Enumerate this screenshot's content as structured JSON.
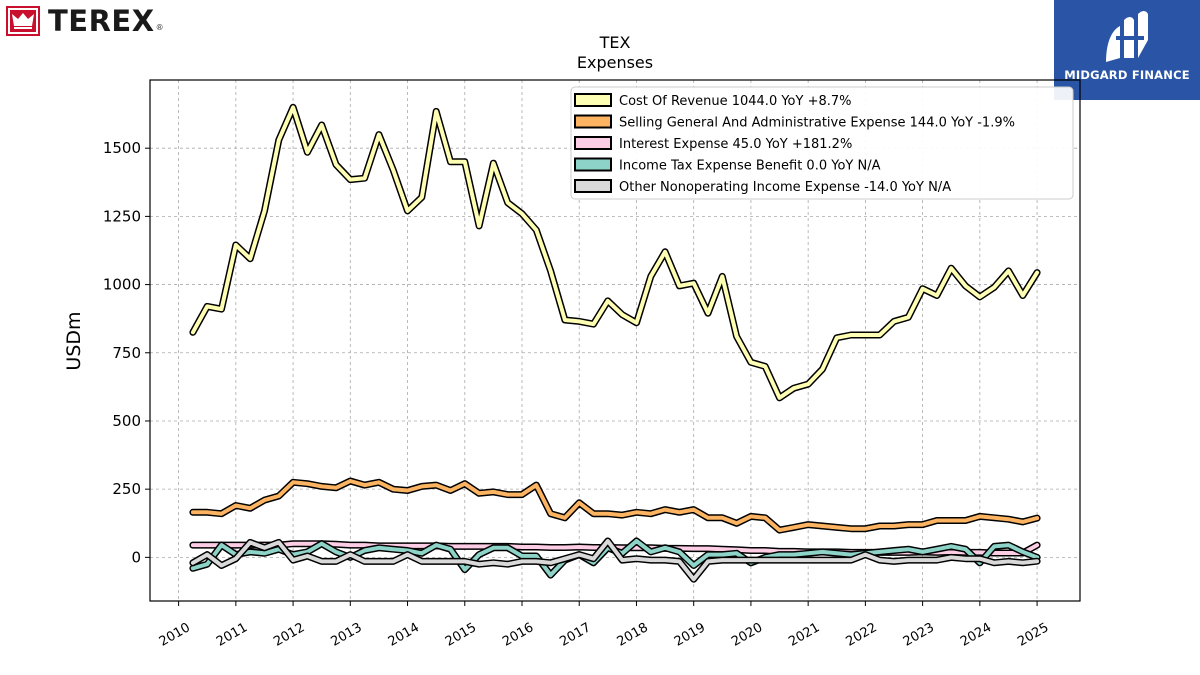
{
  "header": {
    "company_logo_text": "TEREX",
    "registered_mark": "®",
    "brand_name": "MIDGARD FINANCE"
  },
  "chart_data": {
    "type": "line",
    "title": "TEX",
    "subtitle": "Expenses",
    "xlabel": "",
    "ylabel": "USDm",
    "xlim": [
      2009.5,
      2025.75
    ],
    "ylim": [
      -160,
      1750
    ],
    "xticks": [
      "2010",
      "2011",
      "2012",
      "2013",
      "2014",
      "2015",
      "2016",
      "2017",
      "2018",
      "2019",
      "2020",
      "2021",
      "2022",
      "2023",
      "2024",
      "2025"
    ],
    "yticks": [
      "0",
      "250",
      "500",
      "750",
      "1000",
      "1250",
      "1500"
    ],
    "grid": true,
    "legend_position": "top-right",
    "x": [
      2010.25,
      2010.5,
      2010.75,
      2011.0,
      2011.25,
      2011.5,
      2011.75,
      2012.0,
      2012.25,
      2012.5,
      2012.75,
      2013.0,
      2013.25,
      2013.5,
      2013.75,
      2014.0,
      2014.25,
      2014.5,
      2014.75,
      2015.0,
      2015.25,
      2015.5,
      2015.75,
      2016.0,
      2016.25,
      2016.5,
      2016.75,
      2017.0,
      2017.25,
      2017.5,
      2017.75,
      2018.0,
      2018.25,
      2018.5,
      2018.75,
      2019.0,
      2019.25,
      2019.5,
      2019.75,
      2020.0,
      2020.25,
      2020.5,
      2020.75,
      2021.0,
      2021.25,
      2021.5,
      2021.75,
      2022.0,
      2022.25,
      2022.5,
      2022.75,
      2023.0,
      2023.25,
      2023.5,
      2023.75,
      2024.0,
      2024.25,
      2024.5,
      2024.75,
      2025.0
    ],
    "series": [
      {
        "name": "Cost Of Revenue",
        "legend": "Cost Of Revenue  1044.0 YoY +8.7%",
        "color": "#ffffb3",
        "values": [
          825,
          920,
          910,
          1145,
          1095,
          1270,
          1530,
          1650,
          1485,
          1585,
          1440,
          1385,
          1390,
          1550,
          1420,
          1270,
          1320,
          1635,
          1450,
          1450,
          1215,
          1445,
          1300,
          1260,
          1200,
          1050,
          870,
          865,
          855,
          940,
          890,
          860,
          1030,
          1120,
          995,
          1005,
          895,
          1030,
          810,
          715,
          700,
          585,
          620,
          635,
          690,
          805,
          815,
          815,
          815,
          865,
          880,
          985,
          960,
          1060,
          995,
          955,
          990,
          1050,
          960,
          1044
        ]
      },
      {
        "name": "Selling General And Administrative Expense",
        "legend": "Selling General And Administrative Expense  144.0 YoY -1.9%",
        "color": "#fdb462",
        "values": [
          165,
          165,
          160,
          190,
          180,
          210,
          225,
          275,
          270,
          260,
          255,
          280,
          265,
          275,
          250,
          245,
          260,
          265,
          245,
          270,
          235,
          240,
          230,
          230,
          265,
          160,
          145,
          200,
          160,
          160,
          155,
          165,
          160,
          175,
          165,
          175,
          145,
          145,
          125,
          150,
          145,
          100,
          110,
          120,
          115,
          110,
          105,
          105,
          115,
          115,
          120,
          120,
          135,
          135,
          135,
          150,
          145,
          140,
          130,
          144
        ]
      },
      {
        "name": "Interest Expense",
        "legend": "Interest Expense  45.0 YoY +181.2%",
        "color": "#fccde5",
        "values": [
          45,
          45,
          45,
          45,
          45,
          45,
          45,
          50,
          50,
          50,
          48,
          45,
          45,
          42,
          42,
          42,
          42,
          42,
          40,
          40,
          40,
          40,
          40,
          38,
          38,
          36,
          36,
          38,
          36,
          36,
          35,
          35,
          35,
          33,
          33,
          32,
          32,
          30,
          28,
          25,
          25,
          22,
          22,
          20,
          20,
          20,
          18,
          18,
          18,
          18,
          18,
          20,
          18,
          20,
          18,
          18,
          16,
          16,
          16,
          45
        ]
      },
      {
        "name": "Income Tax Expense Benefit",
        "legend": "Income Tax Expense Benefit  0.0 YoY N/A",
        "color": "#8dd3c7",
        "values": [
          -40,
          -25,
          45,
          10,
          20,
          15,
          30,
          10,
          20,
          50,
          20,
          0,
          25,
          35,
          30,
          25,
          15,
          45,
          30,
          -45,
          10,
          35,
          35,
          5,
          5,
          -65,
          -10,
          10,
          -20,
          35,
          15,
          60,
          20,
          35,
          20,
          -30,
          10,
          10,
          15,
          -20,
          0,
          10,
          10,
          15,
          20,
          15,
          10,
          15,
          20,
          25,
          30,
          20,
          30,
          40,
          30,
          -20,
          40,
          45,
          20,
          0
        ]
      },
      {
        "name": "Other Nonoperating Income Expense",
        "legend": "Other Nonoperating Income Expense  -14.0 YoY N/A",
        "color": "#d9d9d9",
        "values": [
          -20,
          10,
          -30,
          -5,
          55,
          35,
          55,
          -10,
          5,
          -15,
          -15,
          10,
          -15,
          -15,
          -15,
          10,
          -15,
          -15,
          -15,
          -15,
          -25,
          -20,
          -25,
          -15,
          -15,
          -20,
          -5,
          10,
          -5,
          60,
          -10,
          -5,
          -10,
          -10,
          -15,
          -80,
          -15,
          -10,
          -10,
          -10,
          -10,
          -10,
          -10,
          -10,
          -10,
          -10,
          -10,
          10,
          -10,
          -15,
          -10,
          -10,
          -10,
          0,
          -5,
          -5,
          -20,
          -15,
          -20,
          -14
        ]
      }
    ]
  }
}
